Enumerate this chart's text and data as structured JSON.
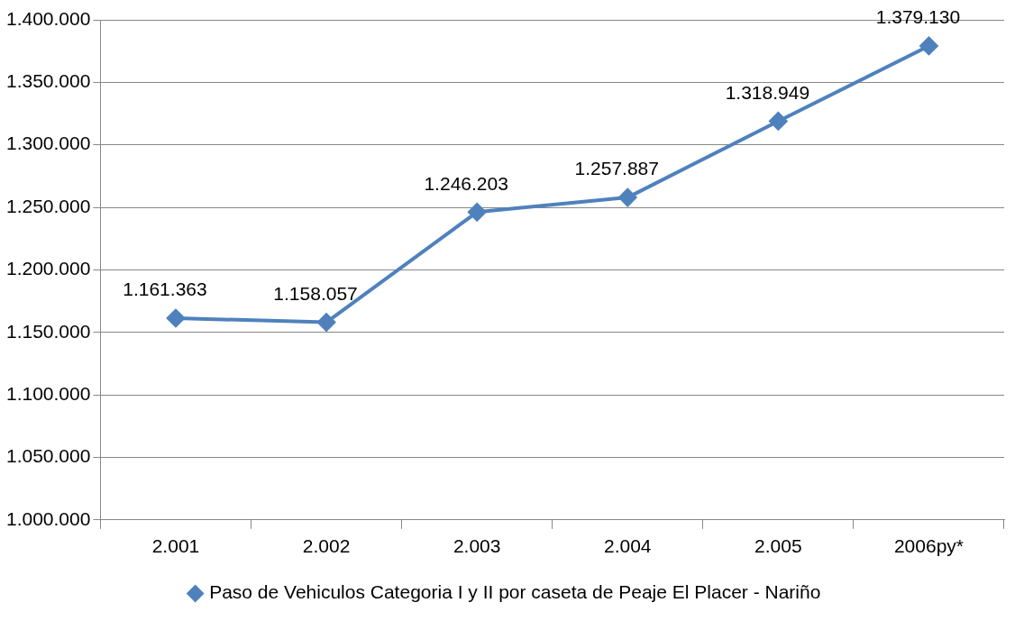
{
  "chart_data": {
    "type": "line",
    "categories": [
      "2.001",
      "2.002",
      "2.003",
      "2.004",
      "2.005",
      "2006py*"
    ],
    "series": [
      {
        "name": "Paso de Vehiculos Categoria I y II por caseta de Peaje El Placer - Nariño",
        "color": "#4f81bd",
        "values": [
          1161363,
          1158057,
          1246203,
          1257887,
          1318949,
          1379130
        ],
        "value_labels": [
          "1.161.363",
          "1.158.057",
          "1.246.203",
          "1.257.887",
          "1.318.949",
          "1.379.130"
        ]
      }
    ],
    "ylim": [
      1000000,
      1400000
    ],
    "yticks": [
      {
        "value": 1000000,
        "label": "1.000.000"
      },
      {
        "value": 1050000,
        "label": "1.050.000"
      },
      {
        "value": 1100000,
        "label": "1.100.000"
      },
      {
        "value": 1150000,
        "label": "1.150.000"
      },
      {
        "value": 1200000,
        "label": "1.200.000"
      },
      {
        "value": 1250000,
        "label": "1.250.000"
      },
      {
        "value": 1300000,
        "label": "1.300.000"
      },
      {
        "value": 1350000,
        "label": "1.350.000"
      },
      {
        "value": 1400000,
        "label": "1.400.000"
      }
    ],
    "grid": "y",
    "legend": "bottom",
    "marker": "diamond",
    "line_style": "solid"
  }
}
